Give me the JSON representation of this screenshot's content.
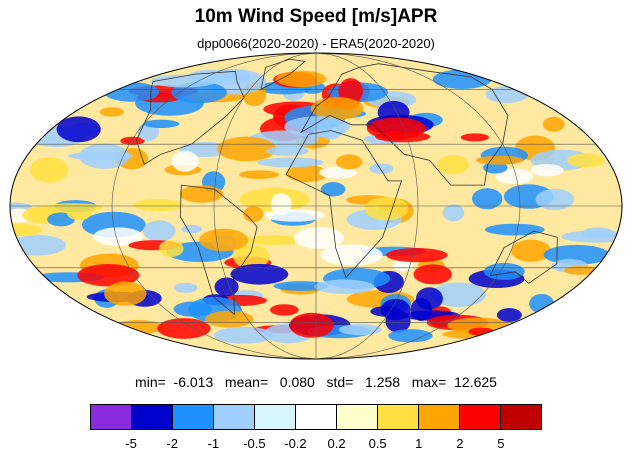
{
  "header": {
    "title": "10m Wind Speed [m/s]APR",
    "subtitle": "dpp0066(2020-2020) - ERA5(2020-2020)"
  },
  "stats": {
    "text": "min=  -6.013   mean=   0.080   std=   1.258   max=  12.625"
  },
  "colorbar": {
    "colors": [
      "#8a2be2",
      "#0000cd",
      "#1e90ff",
      "#9fcfff",
      "#d6f5ff",
      "#ffffff",
      "#ffffcc",
      "#ffe040",
      "#ffa500",
      "#ff0000",
      "#c00000"
    ],
    "tick_labels": [
      "-5",
      "-2",
      "-1",
      "-0.5",
      "-0.2",
      "0.2",
      "0.5",
      "1",
      "2",
      "5"
    ]
  },
  "map": {
    "projection": "Mollweide",
    "grid": true,
    "ocean_palette_note_colors": [
      "#0000cd",
      "#1e90ff",
      "#9fcfff",
      "#ffffff",
      "#ffe040",
      "#ffa500",
      "#ff0000"
    ]
  }
}
